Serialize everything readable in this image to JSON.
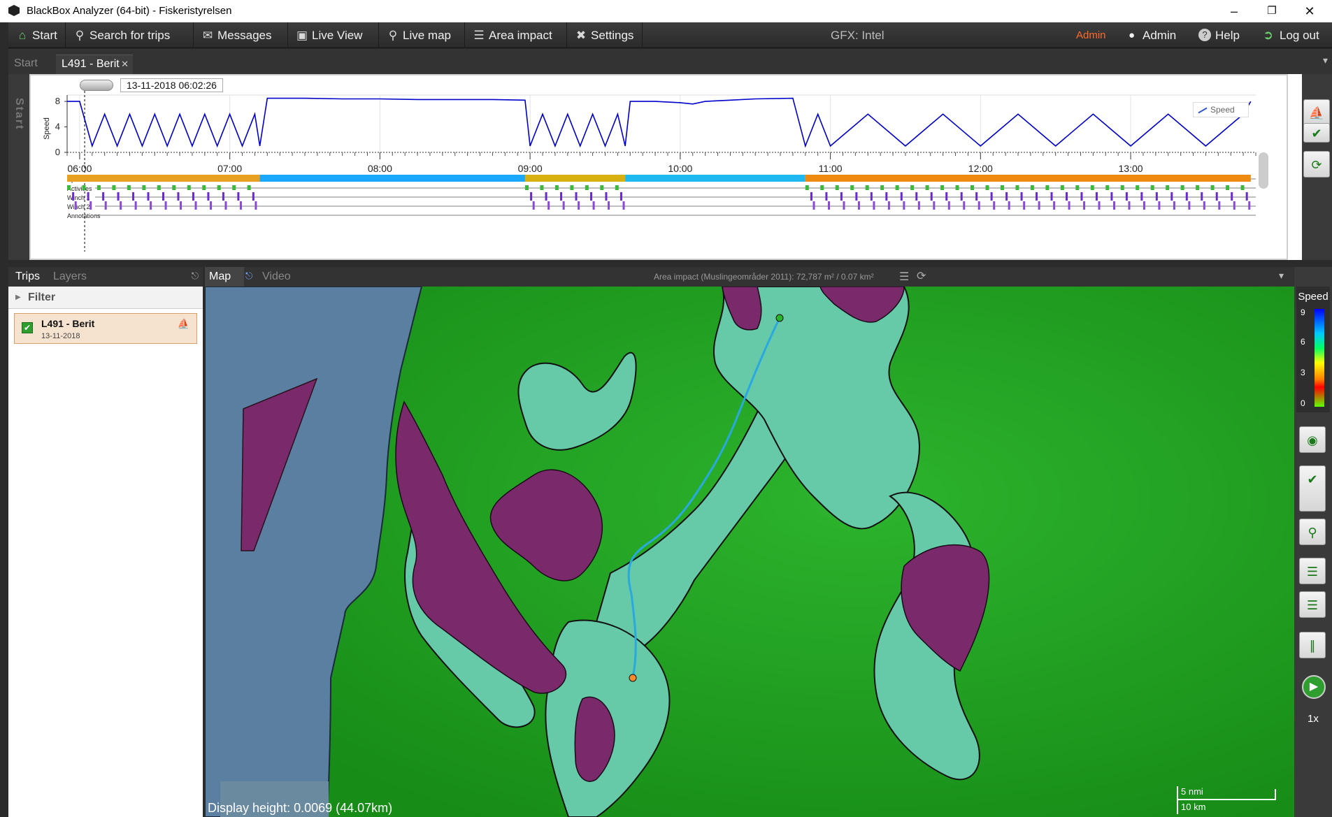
{
  "window": {
    "title": "BlackBox Analyzer (64-bit) - Fiskeristyrelsen",
    "minimize": "–",
    "maximize": "❐",
    "close": "✕"
  },
  "menu": {
    "items": [
      {
        "label": "Start",
        "icon": "home-icon"
      },
      {
        "label": "Search for trips",
        "icon": "search-icon"
      },
      {
        "label": "Messages",
        "icon": "envelope-icon"
      },
      {
        "label": "Live View",
        "icon": "monitor-icon"
      },
      {
        "label": "Live map",
        "icon": "map-pin-icon"
      },
      {
        "label": "Area impact",
        "icon": "list-icon"
      },
      {
        "label": "Settings",
        "icon": "tools-icon"
      }
    ],
    "gfx": "GFX: Intel",
    "role": "Admin",
    "user": "Admin",
    "help": "Help",
    "logout": "Log out"
  },
  "tabs": {
    "start": "Start",
    "trip": "L491 - Berit",
    "close_glyph": "✕",
    "side_start": "Start"
  },
  "timeline": {
    "cursor_time": "13-11-2018 06:02:26",
    "ylabel": "Speed",
    "yticks": [
      "8",
      "4",
      "0"
    ],
    "xticks": [
      "06:00",
      "07:00",
      "08:00",
      "09:00",
      "10:00",
      "11:00",
      "12:00",
      "13:00"
    ],
    "legend": "Speed",
    "tracks": [
      "Speed",
      "Activities",
      "Winch 1",
      "Winch 2",
      "Annotations"
    ]
  },
  "chart_data": {
    "type": "line",
    "ylabel": "Speed",
    "ylim": [
      0,
      9
    ],
    "xlim": [
      "05:55",
      "13:50"
    ],
    "series": [
      {
        "name": "Speed",
        "x": [
          "05:55",
          "06:00",
          "06:05",
          "06:10",
          "06:15",
          "06:20",
          "06:25",
          "06:30",
          "06:35",
          "06:40",
          "06:45",
          "06:50",
          "06:55",
          "07:00",
          "07:05",
          "07:10",
          "07:12",
          "07:15",
          "07:30",
          "07:45",
          "08:00",
          "08:15",
          "08:30",
          "08:45",
          "08:58",
          "09:00",
          "09:05",
          "09:10",
          "09:15",
          "09:20",
          "09:25",
          "09:30",
          "09:35",
          "09:38",
          "09:40",
          "09:50",
          "10:00",
          "10:05",
          "10:10",
          "10:20",
          "10:30",
          "10:45",
          "10:50",
          "10:55",
          "11:00",
          "11:15",
          "11:30",
          "11:45",
          "12:00",
          "12:15",
          "12:30",
          "12:45",
          "13:00",
          "13:15",
          "13:30",
          "13:45",
          "13:48"
        ],
        "values": [
          8,
          8,
          1,
          6,
          1,
          6,
          1,
          6,
          1,
          6,
          1,
          6,
          1,
          6,
          1,
          6,
          1,
          8.5,
          8.5,
          8.4,
          8.4,
          8.3,
          8.3,
          8.3,
          8.2,
          1,
          6,
          1,
          6,
          1,
          6,
          1,
          6,
          1,
          8,
          8,
          7.8,
          7.6,
          8,
          8.2,
          8.4,
          8.5,
          1,
          6,
          1,
          6,
          1,
          6,
          1,
          6,
          1,
          6,
          1,
          6,
          1,
          6,
          8
        ]
      }
    ]
  },
  "left_pane": {
    "tab_trips": "Trips",
    "tab_layers": "Layers",
    "filter": "Filter",
    "trip_name": "L491 - Berit",
    "trip_date": "13-11-2018"
  },
  "map": {
    "tab_map": "Map",
    "tab_video": "Video",
    "area_impact_info": "Area impact (Muslingeområder 2011): 72,787 m²  /  0.07 km²",
    "display_height": "Display height: 0.0069 (44.07km)",
    "scale_nmi": "5 nmi",
    "scale_km": "10 km"
  },
  "legend": {
    "title": "Speed",
    "values": [
      "9",
      "6",
      "3",
      "0"
    ]
  },
  "playback": {
    "speed": "1x"
  },
  "colors": {
    "sea_green": "#2a9a2a",
    "shallow": "#66c9a8",
    "land": "#5a7fa0",
    "protected_area": "#7a2a6a",
    "track": "#2aa8e0",
    "speed_line": "#0000cc",
    "admin_accent": "#ff6a2a"
  }
}
